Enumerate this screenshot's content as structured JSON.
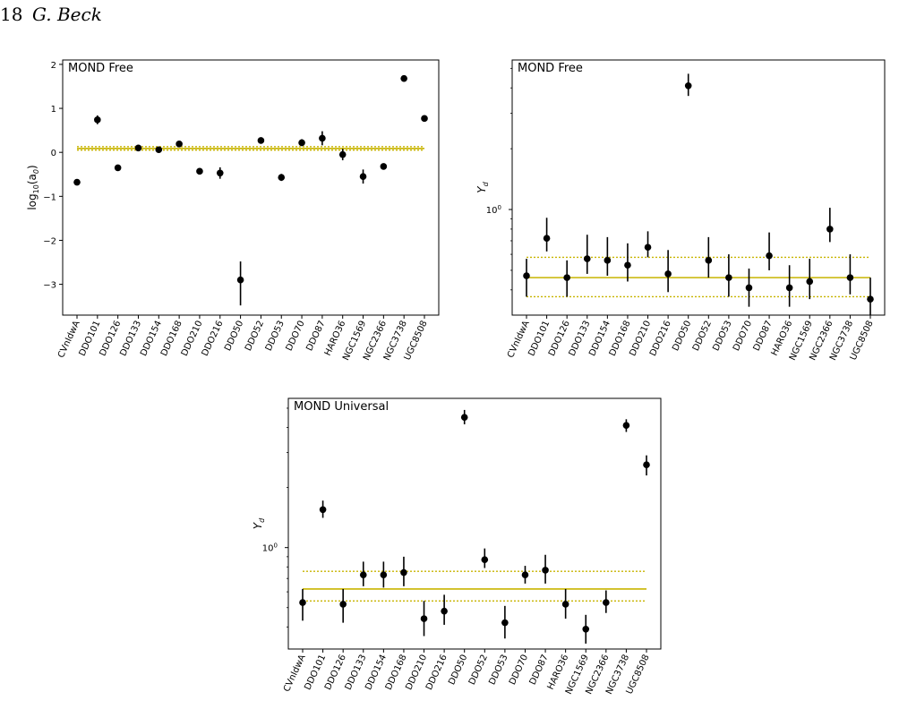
{
  "page": {
    "number": "18",
    "author": "G. Beck"
  },
  "colors": {
    "marker": "#000000",
    "fit_line": "#c8b400"
  },
  "categories": [
    "CVnIdwA",
    "DDO101",
    "DDO126",
    "DDO133",
    "DDO154",
    "DDO168",
    "DDO210",
    "DDO216",
    "DDO50",
    "DDO52",
    "DDO53",
    "DDO70",
    "DDO87",
    "HARO36",
    "NGC1569",
    "NGC2366",
    "NGC3738",
    "UGC8508"
  ],
  "chart_data": [
    {
      "type": "scatter",
      "panel_label": "MOND Free",
      "ylabel_base": "log",
      "ylabel_sub": "10",
      "ylabel_rest": "(a",
      "ylabel_sub2": "0",
      "ylabel_end": ")",
      "yscale": "linear",
      "ylim": [
        -3.7,
        2.1
      ],
      "yticks": [
        {
          "v": -3,
          "label": "−3"
        },
        {
          "v": -2,
          "label": "−2"
        },
        {
          "v": -1,
          "label": "−1"
        },
        {
          "v": 0,
          "label": "0"
        },
        {
          "v": 1,
          "label": "1"
        },
        {
          "v": 2,
          "label": "2"
        }
      ],
      "values": [
        -0.68,
        0.74,
        -0.35,
        0.1,
        0.06,
        0.19,
        -0.43,
        -0.47,
        -2.9,
        0.27,
        -0.57,
        0.22,
        0.32,
        -0.05,
        -0.55,
        -0.32,
        1.68,
        0.77
      ],
      "err_low": [
        0.05,
        0.1,
        0.06,
        0.04,
        0.05,
        0.05,
        0.07,
        0.13,
        0.58,
        0.05,
        0.08,
        0.08,
        0.16,
        0.13,
        0.16,
        0.06,
        0.07,
        0.05
      ],
      "err_high": [
        0.05,
        0.1,
        0.06,
        0.04,
        0.05,
        0.05,
        0.07,
        0.13,
        0.42,
        0.05,
        0.08,
        0.08,
        0.16,
        0.13,
        0.16,
        0.06,
        0.07,
        0.05
      ],
      "fit": {
        "value": 0.09,
        "low": 0.05,
        "high": 0.13
      }
    },
    {
      "type": "scatter",
      "panel_label": "MOND Free",
      "ylabel_base": "Y",
      "ylabel_sub": "d",
      "yscale": "log",
      "ylim": [
        0.3,
        5.5
      ],
      "yticks": [
        {
          "v": 1,
          "label": "10",
          "sup": "0"
        }
      ],
      "values": [
        0.47,
        0.72,
        0.46,
        0.57,
        0.56,
        0.53,
        0.65,
        0.48,
        4.1,
        0.56,
        0.46,
        0.41,
        0.59,
        0.41,
        0.44,
        0.8,
        0.46,
        0.36
      ],
      "err_low": [
        0.1,
        0.1,
        0.09,
        0.09,
        0.09,
        0.09,
        0.07,
        0.09,
        0.45,
        0.1,
        0.09,
        0.08,
        0.09,
        0.08,
        0.08,
        0.11,
        0.08,
        0.06
      ],
      "err_high": [
        0.1,
        0.19,
        0.1,
        0.18,
        0.17,
        0.15,
        0.13,
        0.15,
        0.6,
        0.17,
        0.14,
        0.1,
        0.18,
        0.12,
        0.13,
        0.22,
        0.14,
        0.1
      ],
      "fit": {
        "value": 0.46,
        "low": 0.37,
        "high": 0.58
      }
    },
    {
      "type": "scatter",
      "panel_label": "MOND Universal",
      "ylabel_base": "Y",
      "ylabel_sub": "d",
      "yscale": "log",
      "ylim": [
        0.31,
        5.6
      ],
      "yticks": [
        {
          "v": 1,
          "label": "10",
          "sup": "0"
        }
      ],
      "values": [
        0.53,
        1.55,
        0.52,
        0.73,
        0.73,
        0.75,
        0.44,
        0.48,
        4.5,
        0.87,
        0.42,
        0.73,
        0.77,
        0.52,
        0.39,
        0.53,
        4.1,
        2.6
      ],
      "err_low": [
        0.1,
        0.14,
        0.1,
        0.09,
        0.1,
        0.11,
        0.08,
        0.07,
        0.35,
        0.08,
        0.07,
        0.07,
        0.11,
        0.08,
        0.06,
        0.06,
        0.3,
        0.3
      ],
      "err_high": [
        0.09,
        0.17,
        0.1,
        0.12,
        0.12,
        0.15,
        0.1,
        0.1,
        0.4,
        0.12,
        0.09,
        0.08,
        0.15,
        0.1,
        0.07,
        0.08,
        0.3,
        0.3
      ],
      "fit": {
        "value": 0.62,
        "low": 0.54,
        "high": 0.76
      }
    }
  ]
}
